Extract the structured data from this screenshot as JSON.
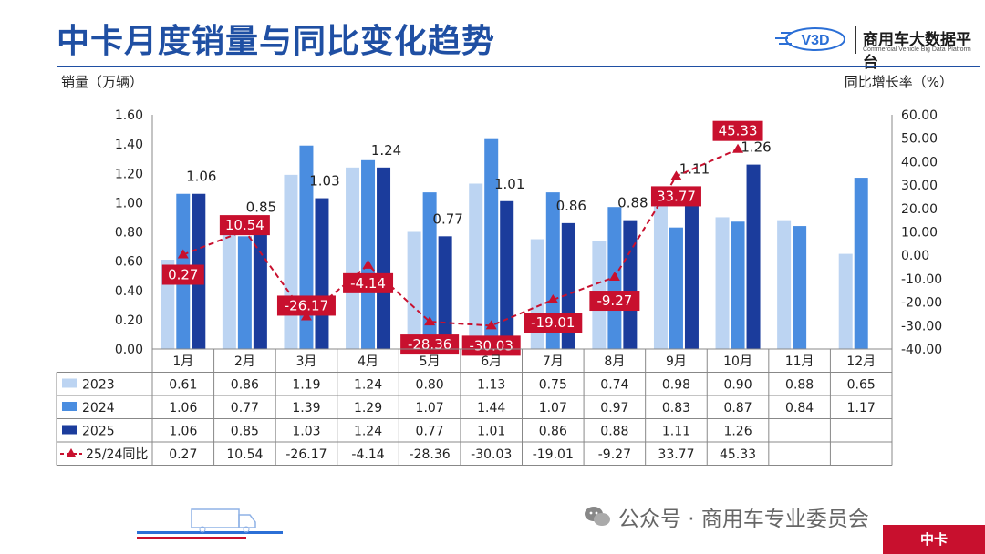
{
  "header": {
    "title": "中卡月度销量与同比变化趋势",
    "logo_text": "V3D",
    "brand_name": "商用车大数据平台",
    "brand_sub": "Commercial Vehicle Big Data Platform"
  },
  "footer": {
    "watermark": "公众号 · 商用车专业委员会",
    "tag": "中卡"
  },
  "colors": {
    "s2023": "#bcd4f2",
    "s2024": "#4a8de0",
    "s2025": "#1b3c9c",
    "yoy_line": "#c8102e",
    "title": "#1f4fa3"
  },
  "chart_data": {
    "type": "bar",
    "ylabel": "销量（万辆）",
    "y2label": "同比增长率（%）",
    "categories": [
      "1月",
      "2月",
      "3月",
      "4月",
      "5月",
      "6月",
      "7月",
      "8月",
      "9月",
      "10月",
      "11月",
      "12月"
    ],
    "ylim": [
      0,
      1.6
    ],
    "y_ticks": [
      "0.00",
      "0.20",
      "0.40",
      "0.60",
      "0.80",
      "1.00",
      "1.20",
      "1.40",
      "1.60"
    ],
    "y2lim": [
      -40,
      60
    ],
    "y2_ticks": [
      "-40.00",
      "-30.00",
      "-20.00",
      "-10.00",
      "0.00",
      "10.00",
      "20.00",
      "30.00",
      "40.00",
      "50.00",
      "60.00"
    ],
    "series": [
      {
        "name": "2023",
        "values": [
          0.61,
          0.86,
          1.19,
          1.24,
          0.8,
          1.13,
          0.75,
          0.74,
          0.98,
          0.9,
          0.88,
          0.65
        ],
        "labels": [
          "0.61",
          "0.86",
          "1.19",
          "1.24",
          "0.80",
          "1.13",
          "0.75",
          "0.74",
          "0.98",
          "0.90",
          "0.88",
          "0.65"
        ]
      },
      {
        "name": "2024",
        "values": [
          1.06,
          0.77,
          1.39,
          1.29,
          1.07,
          1.44,
          1.07,
          0.97,
          0.83,
          0.87,
          0.84,
          1.17
        ],
        "labels": [
          "1.06",
          "0.77",
          "1.39",
          "1.29",
          "1.07",
          "1.44",
          "1.07",
          "0.97",
          "0.83",
          "0.87",
          "0.84",
          "1.17"
        ]
      },
      {
        "name": "2025",
        "values": [
          1.06,
          0.85,
          1.03,
          1.24,
          0.77,
          1.01,
          0.86,
          0.88,
          1.11,
          1.26,
          null,
          null
        ],
        "labels": [
          "1.06",
          "0.85",
          "1.03",
          "1.24",
          "0.77",
          "1.01",
          "0.86",
          "0.88",
          "1.11",
          "1.26",
          "",
          ""
        ]
      }
    ],
    "line_series": {
      "name": "25/24同比",
      "axis": "right",
      "values": [
        0.27,
        10.54,
        -26.17,
        -4.14,
        -28.36,
        -30.03,
        -19.01,
        -9.27,
        33.77,
        45.33,
        null,
        null
      ],
      "labels": [
        "0.27",
        "10.54",
        "-26.17",
        "-4.14",
        "-28.36",
        "-30.03",
        "-19.01",
        "-9.27",
        "33.77",
        "45.33",
        "",
        ""
      ]
    },
    "grid": false,
    "legend": "table-below"
  }
}
